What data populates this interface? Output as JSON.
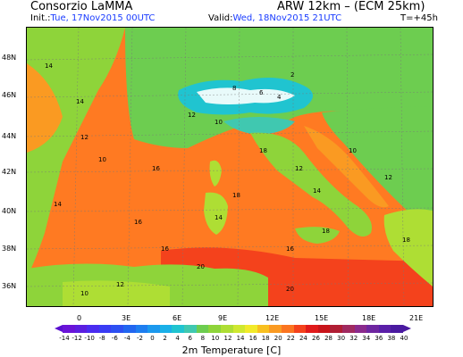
{
  "header": {
    "source": "Consorzio LaMMA",
    "model": "ARW 12km  –  (ECM 25km)",
    "init_label": "Init.:",
    "init_value": "Tue, 17Nov2015  00UTC",
    "valid_label": "Valid:",
    "valid_value": "Wed, 18Nov2015  21UTC",
    "lead_time": "T=+45h"
  },
  "axes": {
    "lat_labels": [
      "48N",
      "46N",
      "44N",
      "42N",
      "40N",
      "38N",
      "36N"
    ],
    "lon_labels": [
      "0",
      "3E",
      "6E",
      "9E",
      "12E",
      "15E",
      "18E",
      "21E"
    ]
  },
  "colorbar": {
    "tick_labels": [
      "-14",
      "-12",
      "-10",
      "-8",
      "-6",
      "-4",
      "-2",
      "0",
      "2",
      "4",
      "6",
      "8",
      "10",
      "12",
      "14",
      "16",
      "18",
      "20",
      "22",
      "24",
      "26",
      "28",
      "30",
      "32",
      "34",
      "36",
      "38",
      "40"
    ],
    "colors": [
      "#6a14d8",
      "#5b1fe0",
      "#4a2cf0",
      "#3a3cf4",
      "#2d50f2",
      "#2266f0",
      "#1e7ef0",
      "#1c99ee",
      "#1ab0e8",
      "#20c4d0",
      "#40c8b0",
      "#6dcd50",
      "#8ed43a",
      "#aede34",
      "#cfe830",
      "#f2ea2a",
      "#f8c020",
      "#fa9a22",
      "#fb7420",
      "#f4421c",
      "#e01a1a",
      "#c8141a",
      "#b01e34",
      "#a02a60",
      "#8a2a8c",
      "#6e26a0",
      "#5a1fa8",
      "#4a1aa0"
    ],
    "label": "2m Temperature [C]"
  },
  "map": {
    "temperature_labels": [
      "14",
      "12",
      "10",
      "14",
      "16",
      "18",
      "20",
      "12",
      "10",
      "8",
      "6",
      "4",
      "2",
      "16",
      "18",
      "12",
      "14",
      "10",
      "12",
      "18",
      "16",
      "14",
      "20",
      "18",
      "10",
      "12",
      "14",
      "16"
    ]
  }
}
